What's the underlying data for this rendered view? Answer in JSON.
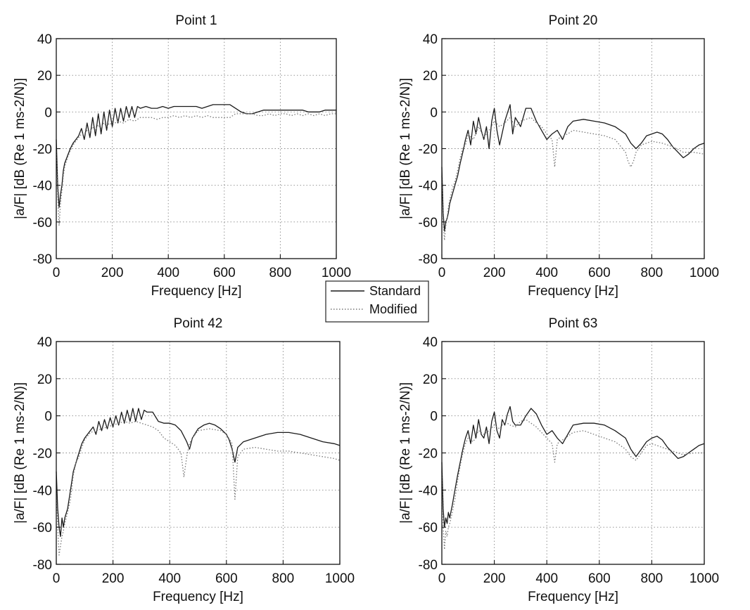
{
  "legend": {
    "position": "center",
    "entries": [
      {
        "label": "Standard",
        "style": "solid",
        "color": "#1a1a1a"
      },
      {
        "label": "Modified",
        "style": "dotted",
        "color": "#777777"
      }
    ]
  },
  "chart_data": [
    {
      "type": "line",
      "title": "Point 1",
      "xlabel": "Frequency [Hz]",
      "ylabel": "|a/F| [dB (Re 1 ms-2/N)]",
      "xlim": [
        0,
        1000
      ],
      "ylim": [
        -80,
        40
      ],
      "xticks": [
        0,
        200,
        400,
        600,
        800,
        1000
      ],
      "yticks": [
        -80,
        -60,
        -40,
        -20,
        0,
        20,
        40
      ],
      "grid": true,
      "series": [
        {
          "name": "Standard",
          "x": [
            0,
            5,
            10,
            15,
            20,
            25,
            30,
            40,
            50,
            60,
            70,
            80,
            90,
            100,
            110,
            120,
            130,
            140,
            150,
            160,
            170,
            180,
            190,
            200,
            210,
            220,
            230,
            240,
            250,
            260,
            270,
            280,
            290,
            300,
            320,
            340,
            360,
            380,
            400,
            420,
            440,
            460,
            480,
            500,
            520,
            540,
            560,
            580,
            600,
            620,
            640,
            660,
            680,
            700,
            720,
            740,
            760,
            780,
            800,
            820,
            840,
            860,
            880,
            900,
            920,
            940,
            960,
            980,
            1000
          ],
          "y": [
            -15,
            -40,
            -52,
            -45,
            -40,
            -32,
            -28,
            -24,
            -20,
            -17,
            -15,
            -13,
            -9,
            -15,
            -6,
            -14,
            -3,
            -13,
            -1,
            -12,
            0,
            -10,
            1,
            -8,
            2,
            -6,
            2,
            -5,
            3,
            -3,
            3,
            -3,
            3,
            2,
            3,
            2,
            2,
            3,
            2,
            3,
            3,
            3,
            3,
            3,
            2,
            3,
            4,
            4,
            4,
            4,
            2,
            0,
            -1,
            -1,
            0,
            1,
            1,
            1,
            1,
            1,
            1,
            1,
            1,
            0,
            0,
            0,
            1,
            1,
            1
          ]
        },
        {
          "name": "Modified",
          "x": [
            0,
            5,
            10,
            15,
            20,
            25,
            30,
            40,
            50,
            60,
            70,
            80,
            90,
            100,
            110,
            120,
            130,
            140,
            150,
            160,
            170,
            180,
            190,
            200,
            220,
            240,
            260,
            280,
            300,
            320,
            340,
            360,
            380,
            400,
            420,
            440,
            460,
            480,
            500,
            520,
            540,
            560,
            580,
            600,
            620,
            640,
            660,
            680,
            700,
            720,
            740,
            760,
            780,
            800,
            820,
            840,
            860,
            880,
            900,
            920,
            940,
            960,
            980,
            1000
          ],
          "y": [
            -20,
            -45,
            -62,
            -50,
            -43,
            -35,
            -30,
            -25,
            -21,
            -18,
            -16,
            -14,
            -12,
            -12,
            -10,
            -11,
            -8,
            -10,
            -7,
            -9,
            -6,
            -8,
            -6,
            -7,
            -5,
            -6,
            -4,
            -5,
            -3,
            -3,
            -3,
            -4,
            -3,
            -3,
            -2,
            -3,
            -2,
            -3,
            -2,
            -3,
            -2,
            -3,
            -3,
            -3,
            -3,
            -1,
            -1,
            -1,
            -1,
            -2,
            -2,
            -1,
            -2,
            -1,
            -1,
            -2,
            -1,
            -2,
            -1,
            -2,
            -1,
            -2,
            -1,
            -1
          ]
        }
      ]
    },
    {
      "type": "line",
      "title": "Point 20",
      "xlabel": "Frequency [Hz]",
      "ylabel": "|a/F| [dB (Re 1 ms-2/N)]",
      "xlim": [
        0,
        1000
      ],
      "ylim": [
        -80,
        40
      ],
      "xticks": [
        0,
        200,
        400,
        600,
        800,
        1000
      ],
      "yticks": [
        -80,
        -60,
        -40,
        -20,
        0,
        20,
        40
      ],
      "grid": true,
      "series": [
        {
          "name": "Standard",
          "x": [
            0,
            5,
            10,
            15,
            20,
            25,
            30,
            40,
            50,
            60,
            70,
            80,
            90,
            100,
            110,
            120,
            130,
            140,
            150,
            160,
            170,
            180,
            190,
            200,
            210,
            220,
            240,
            260,
            270,
            280,
            300,
            320,
            340,
            360,
            380,
            400,
            420,
            440,
            460,
            480,
            500,
            540,
            580,
            620,
            660,
            700,
            720,
            740,
            760,
            780,
            800,
            820,
            840,
            860,
            880,
            900,
            920,
            940,
            960,
            980,
            1000
          ],
          "y": [
            -30,
            -55,
            -65,
            -60,
            -58,
            -55,
            -50,
            -45,
            -40,
            -35,
            -28,
            -22,
            -15,
            -10,
            -18,
            -5,
            -12,
            -3,
            -10,
            -15,
            -8,
            -20,
            -5,
            2,
            -10,
            -18,
            -5,
            4,
            -12,
            -3,
            -8,
            2,
            2,
            -5,
            -10,
            -15,
            -12,
            -10,
            -15,
            -8,
            -5,
            -4,
            -5,
            -6,
            -8,
            -12,
            -17,
            -20,
            -17,
            -13,
            -12,
            -11,
            -12,
            -15,
            -19,
            -22,
            -25,
            -23,
            -20,
            -18,
            -17
          ]
        },
        {
          "name": "Modified",
          "x": [
            0,
            5,
            10,
            15,
            20,
            25,
            30,
            40,
            50,
            60,
            70,
            80,
            90,
            100,
            120,
            140,
            160,
            180,
            200,
            220,
            240,
            260,
            280,
            300,
            320,
            340,
            360,
            380,
            400,
            420,
            430,
            440,
            460,
            480,
            500,
            540,
            580,
            620,
            660,
            700,
            710,
            720,
            730,
            740,
            760,
            780,
            800,
            840,
            880,
            920,
            960,
            1000
          ],
          "y": [
            -35,
            -60,
            -70,
            -62,
            -58,
            -52,
            -48,
            -42,
            -38,
            -32,
            -25,
            -20,
            -18,
            -12,
            -15,
            -8,
            -14,
            -10,
            -5,
            -8,
            -6,
            -3,
            -8,
            -5,
            -4,
            -3,
            -6,
            -8,
            -12,
            -15,
            -30,
            -15,
            -13,
            -12,
            -10,
            -11,
            -12,
            -13,
            -15,
            -22,
            -27,
            -30,
            -27,
            -22,
            -18,
            -17,
            -16,
            -17,
            -19,
            -22,
            -22,
            -23
          ]
        }
      ]
    },
    {
      "type": "line",
      "title": "Point 42",
      "xlabel": "Frequency [Hz]",
      "ylabel": "|a/F| [dB (Re 1 ms-2/N)]",
      "xlim": [
        0,
        1000
      ],
      "ylim": [
        -80,
        40
      ],
      "xticks": [
        0,
        200,
        400,
        600,
        800,
        1000
      ],
      "yticks": [
        -80,
        -60,
        -40,
        -20,
        0,
        20,
        40
      ],
      "grid": true,
      "series": [
        {
          "name": "Standard",
          "x": [
            0,
            5,
            10,
            15,
            20,
            25,
            30,
            40,
            50,
            60,
            70,
            80,
            90,
            100,
            110,
            120,
            130,
            140,
            150,
            160,
            170,
            180,
            190,
            200,
            210,
            220,
            230,
            240,
            250,
            260,
            270,
            280,
            290,
            300,
            310,
            320,
            340,
            360,
            380,
            400,
            420,
            440,
            460,
            470,
            480,
            500,
            520,
            540,
            560,
            580,
            600,
            610,
            620,
            630,
            640,
            660,
            700,
            740,
            780,
            820,
            860,
            900,
            940,
            980,
            1000
          ],
          "y": [
            -30,
            -50,
            -60,
            -65,
            -55,
            -60,
            -55,
            -50,
            -40,
            -30,
            -25,
            -20,
            -15,
            -12,
            -10,
            -8,
            -6,
            -10,
            -3,
            -8,
            -2,
            -7,
            -1,
            -6,
            0,
            -5,
            2,
            -4,
            3,
            -3,
            4,
            -3,
            4,
            -2,
            3,
            2,
            2,
            -3,
            -4,
            -4,
            -5,
            -8,
            -14,
            -18,
            -12,
            -7,
            -5,
            -4,
            -5,
            -7,
            -10,
            -13,
            -18,
            -25,
            -17,
            -14,
            -12,
            -10,
            -9,
            -9,
            -10,
            -12,
            -14,
            -15,
            -16
          ]
        },
        {
          "name": "Modified",
          "x": [
            0,
            5,
            10,
            15,
            20,
            25,
            30,
            40,
            50,
            60,
            70,
            80,
            90,
            100,
            120,
            140,
            160,
            180,
            200,
            220,
            240,
            260,
            280,
            300,
            320,
            340,
            360,
            380,
            400,
            420,
            440,
            450,
            460,
            470,
            480,
            500,
            540,
            580,
            600,
            620,
            630,
            640,
            660,
            700,
            740,
            780,
            820,
            860,
            900,
            940,
            980,
            1000
          ],
          "y": [
            -40,
            -60,
            -75,
            -70,
            -65,
            -62,
            -58,
            -52,
            -45,
            -32,
            -25,
            -22,
            -17,
            -13,
            -9,
            -8,
            -7,
            -6,
            -5,
            -4,
            -3,
            -4,
            -3,
            -4,
            -5,
            -6,
            -8,
            -12,
            -14,
            -16,
            -20,
            -33,
            -22,
            -15,
            -12,
            -8,
            -7,
            -8,
            -10,
            -15,
            -45,
            -22,
            -18,
            -17,
            -18,
            -19,
            -19,
            -20,
            -21,
            -22,
            -23,
            -24
          ]
        }
      ]
    },
    {
      "type": "line",
      "title": "Point 63",
      "xlabel": "Frequency [Hz]",
      "ylabel": "|a/F| [dB (Re 1 ms-2/N)]",
      "xlim": [
        0,
        1000
      ],
      "ylim": [
        -80,
        40
      ],
      "xticks": [
        0,
        200,
        400,
        600,
        800,
        1000
      ],
      "yticks": [
        -80,
        -60,
        -40,
        -20,
        0,
        20,
        40
      ],
      "grid": true,
      "series": [
        {
          "name": "Standard",
          "x": [
            0,
            5,
            10,
            15,
            20,
            25,
            30,
            40,
            50,
            60,
            70,
            80,
            90,
            100,
            110,
            120,
            130,
            140,
            150,
            160,
            170,
            180,
            190,
            200,
            210,
            220,
            230,
            240,
            250,
            260,
            270,
            280,
            300,
            320,
            340,
            360,
            380,
            400,
            420,
            440,
            460,
            480,
            500,
            540,
            580,
            620,
            660,
            700,
            720,
            740,
            760,
            780,
            800,
            820,
            840,
            860,
            880,
            900,
            920,
            940,
            960,
            980,
            1000
          ],
          "y": [
            -25,
            -50,
            -60,
            -55,
            -58,
            -52,
            -55,
            -48,
            -40,
            -32,
            -25,
            -18,
            -12,
            -8,
            -15,
            -5,
            -12,
            -2,
            -10,
            -12,
            -6,
            -15,
            -3,
            2,
            -8,
            -12,
            -2,
            -5,
            1,
            5,
            -3,
            -5,
            -5,
            0,
            4,
            1,
            -5,
            -10,
            -8,
            -12,
            -15,
            -10,
            -5,
            -4,
            -4,
            -5,
            -8,
            -12,
            -18,
            -22,
            -18,
            -14,
            -12,
            -11,
            -13,
            -17,
            -20,
            -23,
            -22,
            -20,
            -18,
            -16,
            -15
          ]
        },
        {
          "name": "Modified",
          "x": [
            0,
            5,
            10,
            15,
            20,
            25,
            30,
            40,
            50,
            60,
            70,
            80,
            90,
            100,
            120,
            140,
            160,
            180,
            200,
            220,
            240,
            260,
            280,
            300,
            320,
            340,
            360,
            380,
            400,
            420,
            430,
            440,
            460,
            480,
            500,
            540,
            580,
            620,
            660,
            700,
            720,
            740,
            760,
            780,
            800,
            840,
            880,
            920,
            960,
            1000
          ],
          "y": [
            -30,
            -60,
            -72,
            -62,
            -65,
            -60,
            -58,
            -52,
            -45,
            -35,
            -27,
            -20,
            -15,
            -12,
            -14,
            -8,
            -10,
            -8,
            -5,
            -7,
            -3,
            -5,
            -6,
            -3,
            -2,
            -4,
            -6,
            -9,
            -12,
            -15,
            -25,
            -15,
            -13,
            -11,
            -9,
            -8,
            -10,
            -12,
            -14,
            -18,
            -22,
            -24,
            -20,
            -16,
            -15,
            -17,
            -19,
            -21,
            -20,
            -20
          ]
        }
      ]
    }
  ]
}
